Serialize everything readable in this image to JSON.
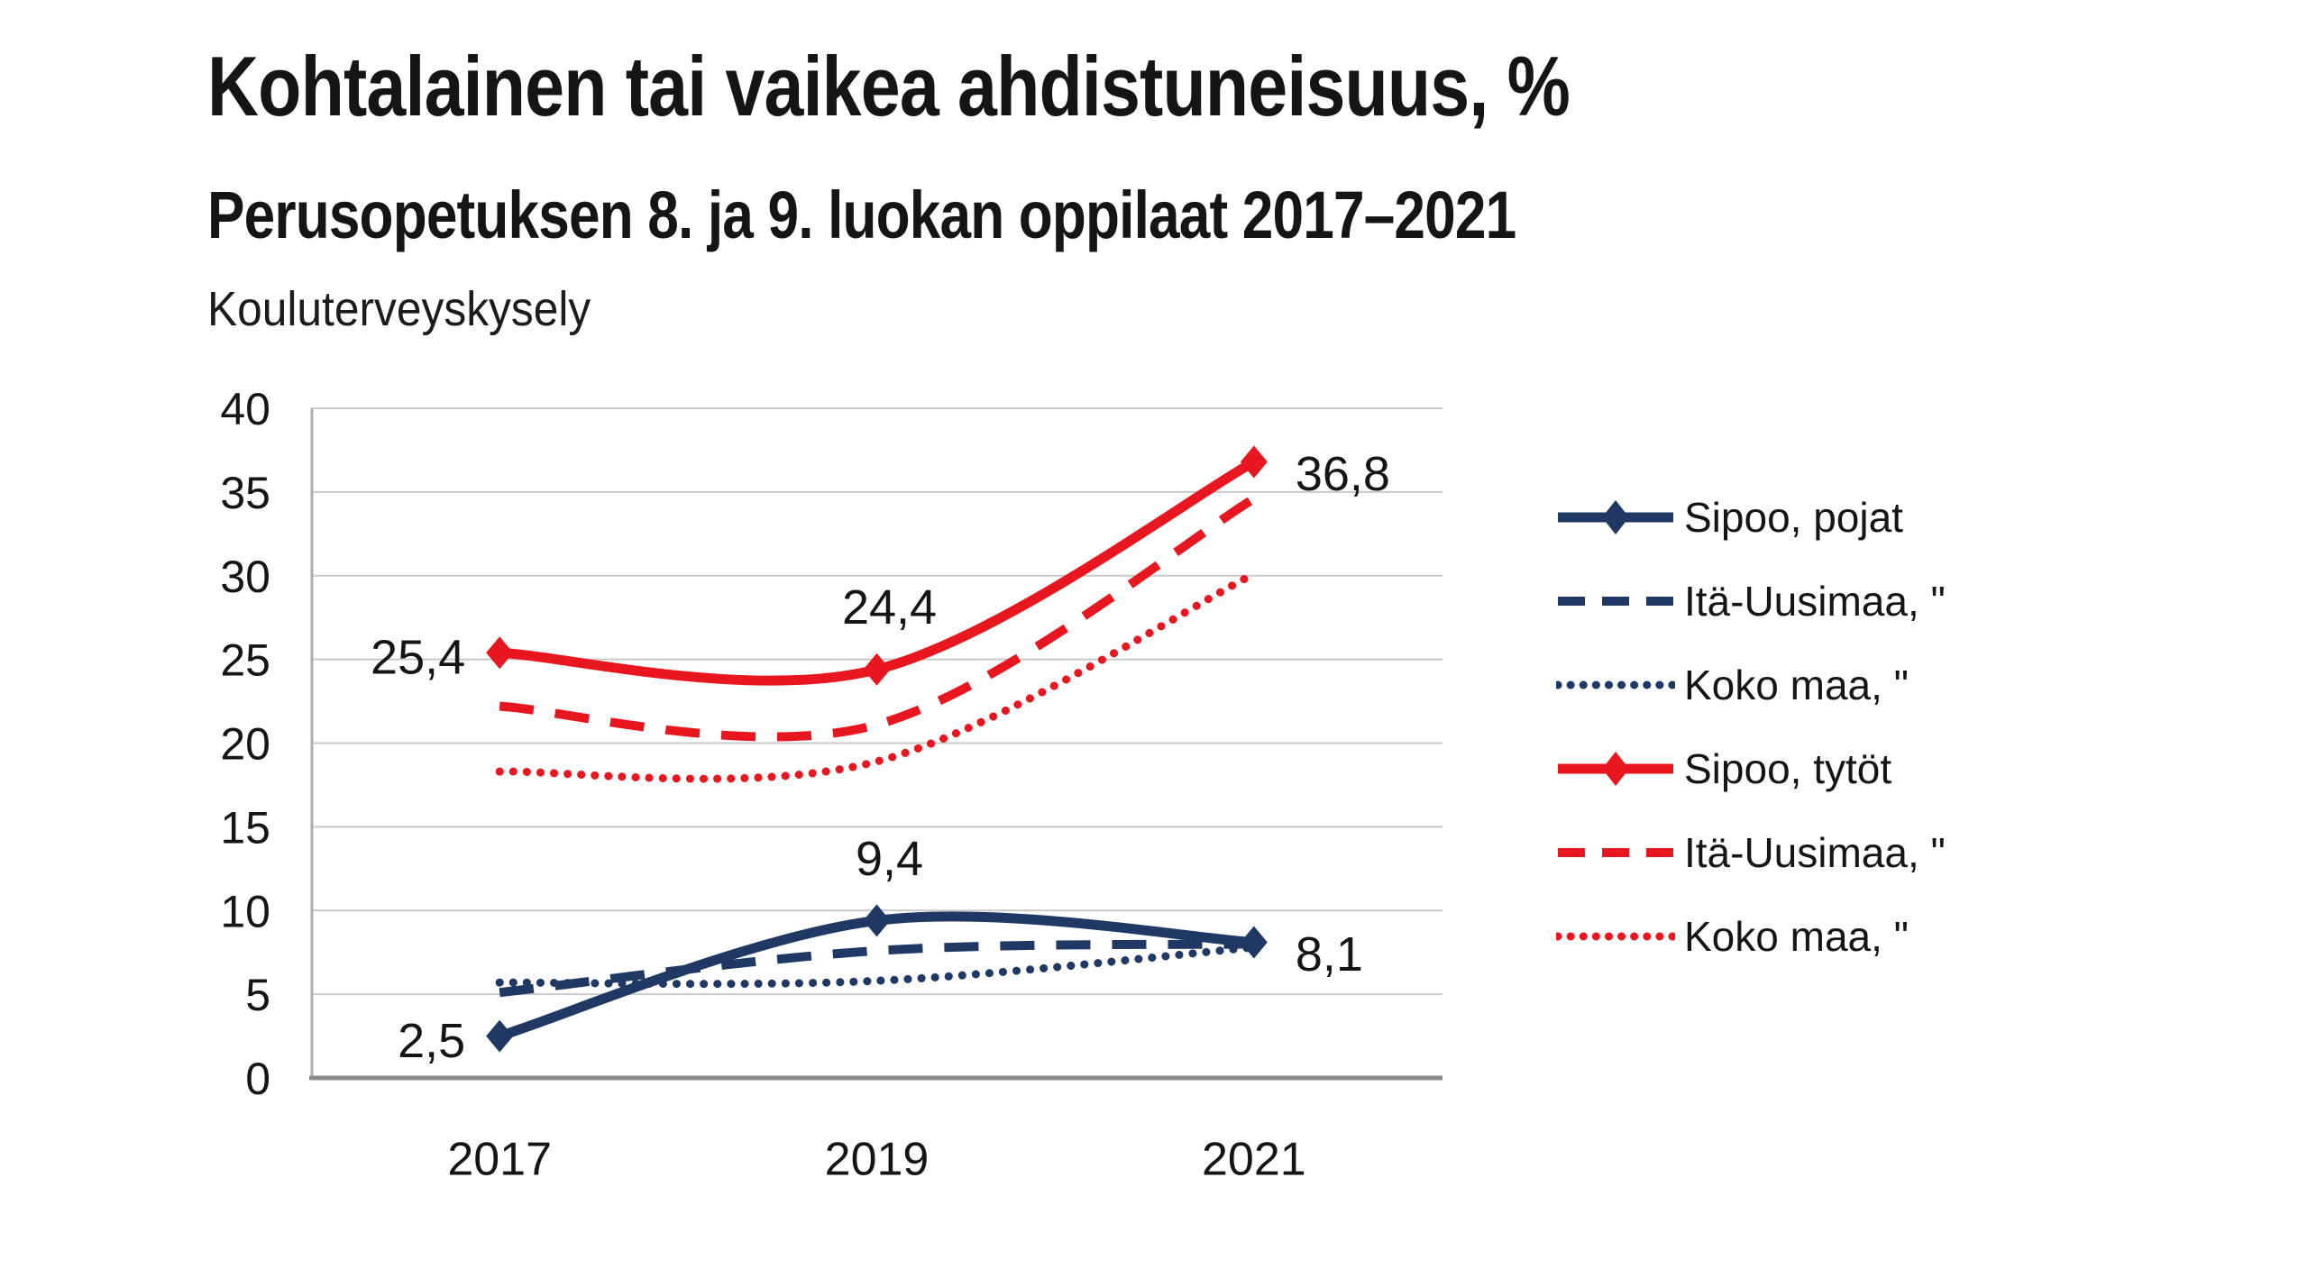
{
  "header": {
    "title": "Kohtalainen tai vaikea ahdistuneisuus, %",
    "subtitle": "Perusopetuksen 8. ja 9. luokan oppilaat 2017–2021",
    "source": "Kouluterveyskysely"
  },
  "colors": {
    "navy": "#1f3864",
    "red": "#e8171f",
    "grid": "#c9c9c9",
    "axis": "#8c8c8c",
    "axis_minor": "#aeaeae",
    "text": "#151515"
  },
  "chart_data": {
    "type": "line",
    "title": "Kohtalainen tai vaikea ahdistuneisuus, %",
    "subtitle": "Perusopetuksen 8. ja 9. luokan oppilaat 2017–2021",
    "source": "Kouluterveyskysely",
    "categories": [
      "2017",
      "2019",
      "2021"
    ],
    "y_ticks": [
      0,
      5,
      10,
      15,
      20,
      25,
      30,
      35,
      40
    ],
    "ylim": [
      0,
      40
    ],
    "grid": "horizontal",
    "legend_position": "right",
    "line_smoothing": true,
    "series": [
      {
        "name": "Sipoo, pojat",
        "color": "navy",
        "dash": "solid",
        "marker": "diamond",
        "values": [
          2.5,
          9.4,
          8.1
        ],
        "point_labels": [
          "2,5",
          "9,4",
          "8,1"
        ]
      },
      {
        "name": "Itä-Uusimaa, \"",
        "color": "navy",
        "dash": "dashed",
        "marker": "none",
        "values": [
          5.1,
          7.6,
          8.0
        ],
        "point_labels": null
      },
      {
        "name": "Koko maa, \"",
        "color": "navy",
        "dash": "dotted",
        "marker": "none",
        "values": [
          5.7,
          5.8,
          7.8
        ],
        "point_labels": null
      },
      {
        "name": "Sipoo, tytöt",
        "color": "red",
        "dash": "solid",
        "marker": "diamond",
        "values": [
          25.4,
          24.4,
          36.8
        ],
        "point_labels": [
          "25,4",
          "24,4",
          "36,8"
        ]
      },
      {
        "name": "Itä-Uusimaa, \"",
        "color": "red",
        "dash": "dashed",
        "marker": "none",
        "values": [
          22.2,
          21.1,
          34.6
        ],
        "point_labels": null
      },
      {
        "name": "Koko maa, \"",
        "color": "red",
        "dash": "dotted",
        "marker": "none",
        "values": [
          18.3,
          18.9,
          30.1
        ],
        "point_labels": null
      }
    ]
  }
}
